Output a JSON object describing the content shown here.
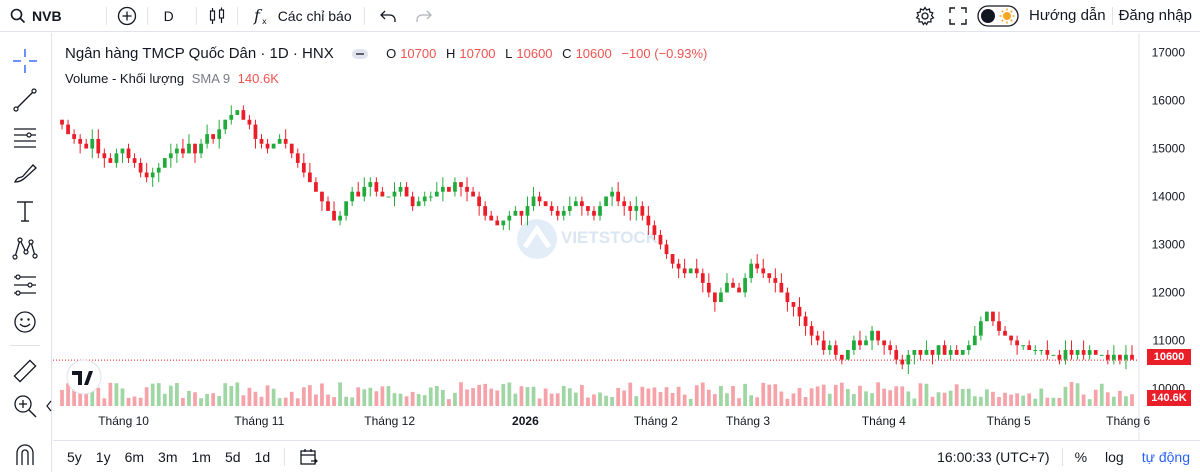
{
  "topbar": {
    "symbol": "NVB",
    "interval": "D",
    "indicators_label": "Các chỉ báo",
    "guide_label": "Hướng dẫn",
    "login_label": "Đăng nhập"
  },
  "legend": {
    "title": "Ngân hàng TMCP Quốc Dân · 1D · HNX",
    "o_label": "O",
    "o_value": "10700",
    "h_label": "H",
    "h_value": "10700",
    "l_label": "L",
    "l_value": "10600",
    "c_label": "C",
    "c_value": "10600",
    "change": "−100 (−0.93%)",
    "volume_label": "Volume - Khối lượng",
    "sma_label": "SMA 9",
    "volume_value": "140.6K"
  },
  "watermark": "VIETSTOCK",
  "bottombar": {
    "ranges": [
      "5y",
      "1y",
      "6m",
      "3m",
      "1m",
      "5d",
      "1d"
    ],
    "time": "16:00:33 (UTC+7)",
    "percent": "%",
    "log": "log",
    "auto": "tự động"
  },
  "colors": {
    "up": "#26a69a",
    "down": "#ef5350",
    "up_candle": "#22ab3c",
    "down_candle": "#e91e28",
    "accent": "#2962ff"
  },
  "chart_data": {
    "type": "candlestick",
    "symbol": "NVB",
    "y_ticks": [
      10000,
      11000,
      12000,
      13000,
      14000,
      15000,
      16000,
      17000
    ],
    "ylim": [
      9800,
      17200
    ],
    "x_ticks": [
      "Tháng 10",
      "Tháng 11",
      "Tháng 12",
      "2026",
      "Tháng 2",
      "Tháng 3",
      "Tháng 4",
      "Tháng 5",
      "Tháng 6"
    ],
    "last_price": "10600",
    "last_volume": "140.6K",
    "closes": [
      15500,
      15300,
      15200,
      15100,
      15000,
      15200,
      14900,
      14800,
      14700,
      14900,
      15000,
      14800,
      14700,
      14500,
      14400,
      14500,
      14600,
      14800,
      14900,
      15000,
      14900,
      15100,
      14900,
      15100,
      15300,
      15200,
      15400,
      15600,
      15700,
      15800,
      15600,
      15500,
      15200,
      15100,
      15000,
      15100,
      15200,
      15100,
      14900,
      14700,
      14500,
      14300,
      14100,
      13900,
      13700,
      13500,
      13600,
      13900,
      14100,
      14000,
      14200,
      14300,
      14100,
      14000,
      14000,
      14100,
      14200,
      14000,
      13800,
      13900,
      14000,
      14000,
      14100,
      14200,
      14100,
      14300,
      14200,
      14100,
      14000,
      13800,
      13600,
      13500,
      13400,
      13500,
      13600,
      13700,
      13600,
      13800,
      14000,
      13900,
      13800,
      13700,
      13600,
      13700,
      13800,
      13900,
      13800,
      13700,
      13600,
      13800,
      14000,
      14100,
      13900,
      13800,
      13700,
      13800,
      13600,
      13400,
      13200,
      13000,
      12800,
      12600,
      12500,
      12400,
      12500,
      12400,
      12200,
      12000,
      11800,
      12000,
      12200,
      12100,
      12000,
      12300,
      12600,
      12500,
      12400,
      12300,
      12200,
      12000,
      11800,
      11700,
      11500,
      11300,
      11100,
      11000,
      10800,
      10900,
      10700,
      10600,
      10800,
      11000,
      10900,
      11000,
      11200,
      11000,
      10900,
      10800,
      10600,
      10500,
      10700,
      10800,
      10700,
      10800,
      10700,
      10900,
      10700,
      10800,
      10700,
      10800,
      10900,
      11100,
      11400,
      11600,
      11400,
      11200,
      11100,
      11000,
      10900,
      10900,
      10800,
      10800,
      10800,
      10700,
      10700,
      10600,
      10800,
      10700,
      10800,
      10700,
      10800,
      10700,
      10700,
      10600,
      10700,
      10600,
      10700,
      10600
    ]
  }
}
